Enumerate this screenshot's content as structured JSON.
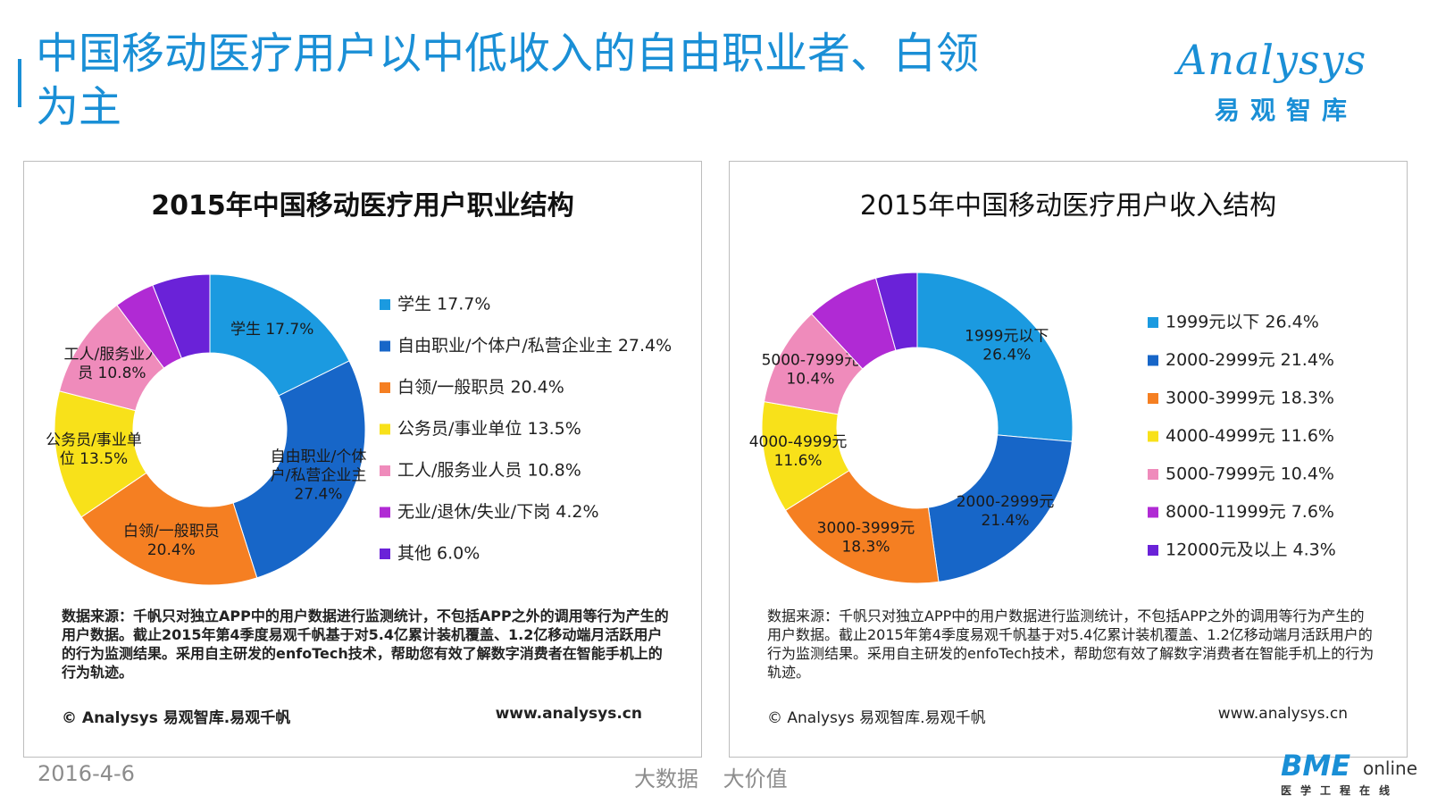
{
  "page": {
    "title": "中国移动医疗用户以中低收入的自由职业者、白领为主",
    "date": "2016-4-6",
    "slogan": "大数据 大价值"
  },
  "logo": {
    "word": "Analysys",
    "sub": "易观智库"
  },
  "footer_logo": {
    "word": "BME",
    "online": "online",
    "sub": "医学工程在线"
  },
  "panels": [
    {
      "title": "2015年中国移动医疗用户职业结构",
      "source": "数据来源：千帆只对独立APP中的用户数据进行监测统计，不包括APP之外的调用等行为产生的用户数据。截止2015年第4季度易观千帆基于对5.4亿累计装机覆盖、1.2亿移动端月活跃用户的行为监测结果。采用自主研发的enfoTech技术，帮助您有效了解数字消费者在智能手机上的行为轨迹。",
      "copyright": "© Analysys 易观智库.易观千帆",
      "website": "www.analysys.cn"
    },
    {
      "title": "2015年中国移动医疗用户收入结构",
      "source": "数据来源：千帆只对独立APP中的用户数据进行监测统计，不包括APP之外的调用等行为产生的用户数据。截止2015年第4季度易观千帆基于对5.4亿累计装机覆盖、1.2亿移动端月活跃用户的行为监测结果。采用自主研发的enfoTech技术，帮助您有效了解数字消费者在智能手机上的行为轨迹。",
      "copyright": "© Analysys 易观智库.易观千帆",
      "website": "www.analysys.cn"
    }
  ],
  "chart_data": [
    {
      "type": "pie",
      "title": "2015年中国移动医疗用户职业结构",
      "unit": "%",
      "legend_position": "right",
      "slices": [
        {
          "name": "学生",
          "value": 17.7,
          "color": "#1b9ae0",
          "label": [
            "学生 17.7%"
          ],
          "legend": "学生 17.7%"
        },
        {
          "name": "自由职业/个体户/私营企业主",
          "value": 27.4,
          "color": "#1766c8",
          "label": [
            "自由职业/个体",
            "户/私营企业主",
            "27.4%"
          ],
          "legend": "自由职业/个体户/私营企业主 27.4%"
        },
        {
          "name": "白领/一般职员",
          "value": 20.4,
          "color": "#f57f22",
          "label": [
            "白领/一般职员",
            "20.4%"
          ],
          "legend": "白领/一般职员 20.4%"
        },
        {
          "name": "公务员/事业单位",
          "value": 13.5,
          "color": "#f8e11a",
          "label": [
            "公务员/事业单",
            "位 13.5%"
          ],
          "legend": "公务员/事业单位 13.5%"
        },
        {
          "name": "工人/服务业人员",
          "value": 10.8,
          "color": "#ef8bbb",
          "label": [
            "工人/服务业人",
            "员 10.8%"
          ],
          "legend": "工人/服务业人员 10.8%"
        },
        {
          "name": "无业/退休/失业/下岗",
          "value": 4.2,
          "color": "#b02ad4",
          "label": [],
          "legend": "无业/退休/失业/下岗 4.2%"
        },
        {
          "name": "其他",
          "value": 6.0,
          "color": "#6a22d8",
          "label": [],
          "legend": "其他 6.0%"
        }
      ]
    },
    {
      "type": "pie",
      "title": "2015年中国移动医疗用户收入结构",
      "unit": "%",
      "legend_position": "right",
      "slices": [
        {
          "name": "1999元以下",
          "value": 26.4,
          "color": "#1b9ae0",
          "label": [
            "1999元以下",
            "26.4%"
          ],
          "legend": "1999元以下 26.4%"
        },
        {
          "name": "2000-2999元",
          "value": 21.4,
          "color": "#1766c8",
          "label": [
            "2000-2999元",
            "21.4%"
          ],
          "legend": "2000-2999元 21.4%"
        },
        {
          "name": "3000-3999元",
          "value": 18.3,
          "color": "#f57f22",
          "label": [
            "3000-3999元",
            "18.3%"
          ],
          "legend": "3000-3999元 18.3%"
        },
        {
          "name": "4000-4999元",
          "value": 11.6,
          "color": "#f8e11a",
          "label": [
            "4000-4999元",
            "11.6%"
          ],
          "legend": "4000-4999元 11.6%"
        },
        {
          "name": "5000-7999元",
          "value": 10.4,
          "color": "#ef8bbb",
          "label": [
            "5000-7999元",
            "10.4%"
          ],
          "legend": "5000-7999元 10.4%"
        },
        {
          "name": "8000-11999元",
          "value": 7.6,
          "color": "#b02ad4",
          "label": [],
          "legend": "8000-11999元 7.6%"
        },
        {
          "name": "12000元及以上",
          "value": 4.3,
          "color": "#6a22d8",
          "label": [],
          "legend": "12000元及以上 4.3%"
        }
      ]
    }
  ]
}
